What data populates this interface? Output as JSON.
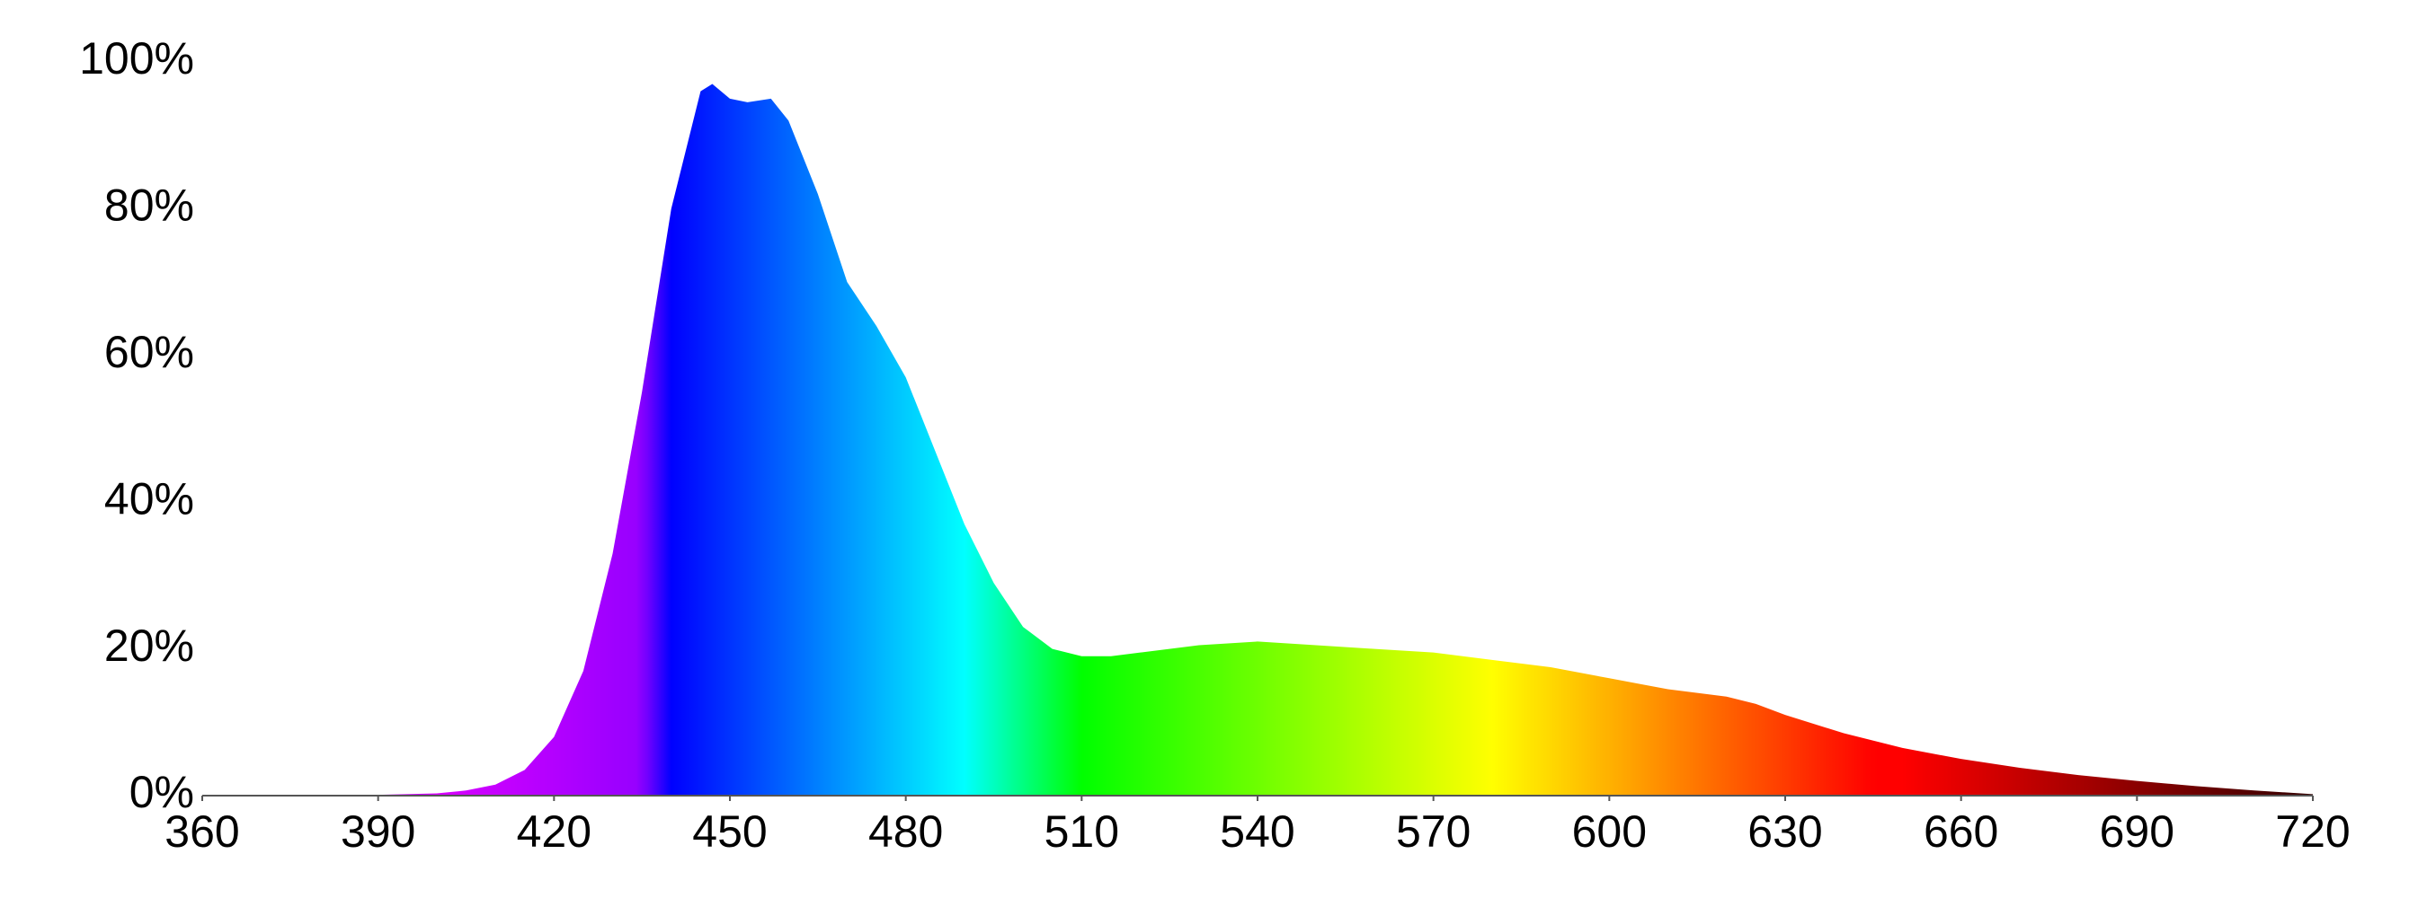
{
  "chart_data": {
    "type": "area",
    "x": [
      360,
      370,
      380,
      390,
      400,
      405,
      410,
      415,
      420,
      425,
      430,
      435,
      440,
      445,
      447,
      450,
      453,
      457,
      460,
      465,
      470,
      475,
      480,
      485,
      490,
      495,
      500,
      505,
      510,
      515,
      520,
      530,
      540,
      550,
      560,
      570,
      580,
      590,
      600,
      610,
      620,
      625,
      630,
      640,
      650,
      660,
      670,
      680,
      690,
      700,
      710,
      720
    ],
    "values": [
      0,
      0,
      0,
      0.1,
      0.3,
      0.7,
      1.5,
      3.5,
      8,
      17,
      33,
      55,
      80,
      96,
      97,
      95,
      94.5,
      95,
      92,
      82,
      70,
      64,
      57,
      47,
      37,
      29,
      23,
      20,
      19,
      19,
      19.5,
      20.5,
      21,
      20.5,
      20,
      19.5,
      18.5,
      17.5,
      16,
      14.5,
      13.5,
      12.5,
      11,
      8.5,
      6.5,
      5,
      3.8,
      2.8,
      2,
      1.3,
      0.7,
      0.2
    ],
    "xlim": [
      360,
      720
    ],
    "xticks": [
      360,
      390,
      420,
      450,
      480,
      510,
      540,
      570,
      600,
      630,
      660,
      690,
      720
    ],
    "ylim": [
      0,
      100
    ],
    "yticks": [
      {
        "value": 0,
        "label": "0%"
      },
      {
        "value": 20,
        "label": "20%"
      },
      {
        "value": 40,
        "label": "40%"
      },
      {
        "value": 60,
        "label": "60%"
      },
      {
        "value": 80,
        "label": "80%"
      },
      {
        "value": 100,
        "label": "100%"
      }
    ],
    "grid": false
  }
}
